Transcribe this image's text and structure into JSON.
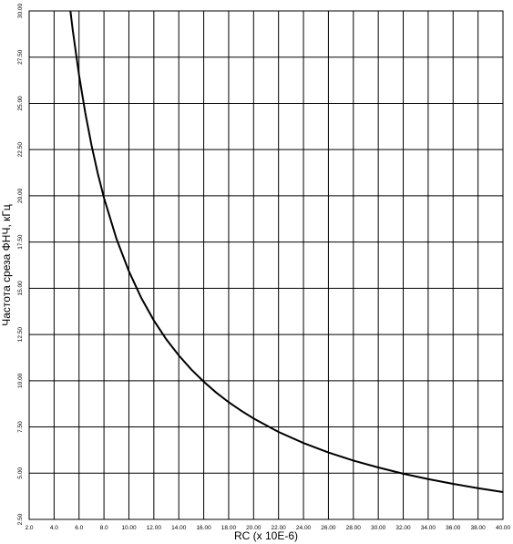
{
  "chart_data": {
    "type": "line",
    "title": "",
    "xlabel": "RC (x 10E-6)",
    "ylabel": "Частота среза ФНЧ, кГц",
    "xlim": [
      2.0,
      40.0
    ],
    "ylim": [
      2.5,
      30.0
    ],
    "grid": true,
    "x_ticks": [
      "2.0",
      "4.0",
      "6.0",
      "8.0",
      "10.00",
      "12.00",
      "14.00",
      "16.00",
      "18.00",
      "20.00",
      "22.00",
      "24.00",
      "26.00",
      "28.00",
      "30.00",
      "32.00",
      "34.00",
      "36.00",
      "38.00",
      "40.00"
    ],
    "y_ticks": [
      "2.50",
      "5.00",
      "7.50",
      "10.00",
      "12.50",
      "15.00",
      "17.50",
      "20.00",
      "22.50",
      "25.00",
      "27.50",
      "30.00"
    ],
    "series": [
      {
        "color": "#000000",
        "x": [
          5.31,
          5.5,
          6.0,
          6.5,
          7.0,
          7.5,
          8.0,
          9.0,
          10.0,
          11.0,
          12.0,
          13.0,
          14.0,
          15.0,
          16.0,
          17.0,
          18.0,
          19.0,
          20.0,
          22.0,
          24.0,
          26.0,
          28.0,
          30.0,
          32.0,
          34.0,
          36.0,
          38.0,
          40.0
        ],
        "y": [
          30.0,
          28.94,
          26.53,
          24.49,
          22.74,
          21.22,
          19.89,
          17.68,
          15.92,
          14.47,
          13.26,
          12.24,
          11.37,
          10.61,
          9.95,
          9.36,
          8.84,
          8.38,
          7.96,
          7.23,
          6.63,
          6.12,
          5.68,
          5.31,
          4.97,
          4.68,
          4.42,
          4.19,
          3.98
        ]
      }
    ]
  }
}
